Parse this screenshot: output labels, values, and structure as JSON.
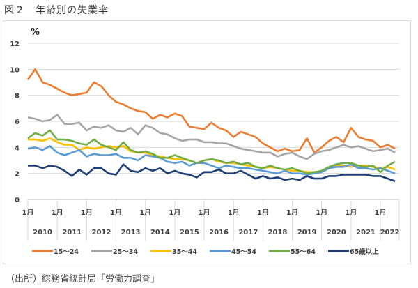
{
  "title": "図２　年齢別の失業率",
  "source": "（出所）総務省統計局「労働力調査」",
  "chart_data": {
    "type": "line",
    "title": "年齢別の失業率",
    "ylabel": "%",
    "ylim": [
      0,
      12
    ],
    "yticks": [
      0,
      2,
      4,
      6,
      8,
      10,
      12
    ],
    "grid": true,
    "x_frequency": "quarterly (Jan, Apr, Jul, Oct), Jan 2010 – Jul 2022",
    "x_start_year": 2010,
    "month_tick_label": "1月",
    "years": [
      "2010",
      "2011",
      "2012",
      "2013",
      "2014",
      "2015",
      "2016",
      "2017",
      "2018",
      "2019",
      "2020",
      "2021",
      "2022"
    ],
    "legend_position": "bottom",
    "series": [
      {
        "name": "15～24",
        "color": "#ED7D31",
        "values": [
          9.2,
          10.0,
          9.0,
          8.8,
          8.5,
          8.2,
          8.0,
          8.1,
          8.2,
          9.0,
          8.7,
          8.0,
          7.5,
          7.3,
          7.0,
          6.8,
          6.7,
          6.2,
          6.5,
          6.3,
          6.6,
          6.4,
          5.6,
          5.5,
          5.4,
          5.9,
          5.5,
          5.3,
          4.8,
          5.2,
          5.0,
          4.8,
          4.3,
          4.0,
          3.7,
          3.9,
          3.7,
          3.8,
          4.7,
          3.6,
          4.0,
          4.5,
          4.8,
          4.4,
          5.5,
          4.8,
          4.6,
          4.5,
          4.0,
          4.2,
          3.9
        ]
      },
      {
        "name": "25～34",
        "color": "#A5A5A5",
        "values": [
          6.3,
          6.2,
          6.0,
          6.1,
          6.5,
          5.8,
          5.8,
          5.9,
          5.3,
          5.6,
          5.5,
          5.7,
          5.3,
          5.2,
          5.5,
          5.0,
          5.7,
          5.5,
          5.1,
          5.0,
          4.7,
          4.5,
          4.6,
          4.6,
          4.4,
          4.4,
          4.3,
          4.3,
          4.1,
          3.9,
          3.8,
          3.7,
          3.6,
          3.6,
          3.3,
          3.5,
          3.6,
          3.3,
          3.1,
          3.5,
          3.7,
          3.8,
          4.0,
          4.2,
          4.0,
          4.1,
          3.9,
          3.7,
          3.8,
          3.9,
          3.6
        ]
      },
      {
        "name": "35～44",
        "color": "#FFC000",
        "values": [
          4.6,
          4.6,
          4.5,
          4.7,
          4.4,
          4.2,
          4.2,
          3.8,
          4.0,
          3.9,
          4.0,
          4.1,
          4.0,
          4.1,
          3.7,
          3.6,
          3.6,
          3.4,
          3.3,
          3.2,
          3.1,
          3.1,
          3.0,
          2.8,
          3.0,
          3.1,
          2.9,
          2.8,
          2.8,
          2.7,
          2.6,
          2.5,
          2.4,
          2.5,
          2.4,
          2.3,
          2.2,
          2.2,
          2.1,
          2.1,
          2.1,
          2.4,
          2.6,
          2.6,
          2.5,
          2.6,
          2.6,
          2.5,
          2.4,
          2.5,
          2.3
        ]
      },
      {
        "name": "45～54",
        "color": "#5B9BD5",
        "values": [
          3.9,
          4.0,
          3.8,
          4.1,
          3.6,
          3.4,
          3.6,
          3.8,
          3.3,
          3.5,
          3.4,
          3.4,
          3.5,
          3.2,
          3.2,
          3.0,
          3.4,
          3.3,
          3.2,
          2.9,
          2.8,
          2.9,
          2.6,
          2.8,
          2.8,
          2.6,
          2.4,
          2.6,
          2.5,
          2.4,
          2.4,
          2.3,
          2.2,
          2.1,
          2.0,
          2.2,
          2.0,
          2.0,
          1.9,
          2.0,
          2.1,
          2.4,
          2.5,
          2.5,
          2.7,
          2.4,
          2.4,
          2.3,
          2.4,
          2.2,
          2.0
        ]
      },
      {
        "name": "55～64",
        "color": "#70AD47",
        "values": [
          4.7,
          5.1,
          4.9,
          5.3,
          4.6,
          4.6,
          4.5,
          4.3,
          4.2,
          4.6,
          4.2,
          4.0,
          3.8,
          4.4,
          3.8,
          3.6,
          3.7,
          3.5,
          3.2,
          3.2,
          3.4,
          3.2,
          3.0,
          2.8,
          3.0,
          3.1,
          3.0,
          2.8,
          2.9,
          2.7,
          2.8,
          2.5,
          2.4,
          2.6,
          2.4,
          2.3,
          2.4,
          2.2,
          2.0,
          2.1,
          2.2,
          2.5,
          2.7,
          2.8,
          2.8,
          2.6,
          2.5,
          2.6,
          2.1,
          2.6,
          2.9
        ]
      },
      {
        "name": "65歳以上",
        "color": "#1F3F77",
        "values": [
          2.6,
          2.6,
          2.4,
          2.6,
          2.5,
          2.2,
          1.8,
          2.3,
          1.9,
          2.4,
          2.4,
          2.0,
          1.9,
          2.7,
          2.2,
          2.1,
          2.4,
          2.2,
          2.4,
          2.0,
          2.2,
          2.0,
          1.9,
          1.7,
          2.1,
          2.1,
          2.3,
          2.0,
          2.0,
          2.2,
          1.9,
          1.6,
          1.8,
          1.6,
          1.7,
          1.5,
          1.6,
          1.5,
          1.8,
          1.6,
          1.6,
          1.8,
          1.8,
          1.9,
          1.9,
          1.9,
          1.9,
          1.8,
          1.8,
          1.6,
          1.4
        ]
      }
    ]
  }
}
